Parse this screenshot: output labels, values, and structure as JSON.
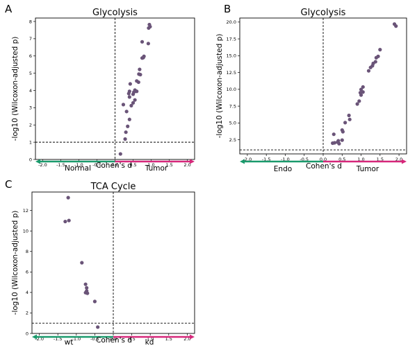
{
  "chart_data": [
    {
      "panel": "A",
      "type": "scatter",
      "title": "Glycolysis",
      "xlabel": "Cohen's d",
      "ylabel": "-log10 (Wilcoxon-adjusted p)",
      "xlim": [
        -2.2,
        2.2
      ],
      "ylim": [
        0,
        8.2
      ],
      "xticks": [
        "-2.0",
        "-1.5",
        "-1.0",
        "-0.5",
        "0.0",
        "0.5",
        "1.0",
        "1.5",
        "2.0"
      ],
      "yticks": [
        "0",
        "1",
        "2",
        "3",
        "4",
        "5",
        "6",
        "7",
        "8"
      ],
      "threshold_y": 1.0,
      "vline_x": 0.0,
      "group_left": "Normal",
      "group_right": "Tumor",
      "color_left": "#1a9a6c",
      "color_right": "#d6277a",
      "point_color": "#6a5478",
      "points": [
        {
          "x": 0.95,
          "y": 7.82
        },
        {
          "x": 0.97,
          "y": 7.7
        },
        {
          "x": 0.93,
          "y": 7.62
        },
        {
          "x": 0.75,
          "y": 6.82
        },
        {
          "x": 0.92,
          "y": 6.72
        },
        {
          "x": 0.8,
          "y": 5.98
        },
        {
          "x": 0.78,
          "y": 5.9
        },
        {
          "x": 0.75,
          "y": 5.88
        },
        {
          "x": 0.68,
          "y": 5.22
        },
        {
          "x": 0.66,
          "y": 4.95
        },
        {
          "x": 0.7,
          "y": 4.92
        },
        {
          "x": 0.6,
          "y": 4.55
        },
        {
          "x": 0.65,
          "y": 4.48
        },
        {
          "x": 0.42,
          "y": 4.38
        },
        {
          "x": 0.4,
          "y": 3.95
        },
        {
          "x": 0.38,
          "y": 3.82
        },
        {
          "x": 0.55,
          "y": 4.02
        },
        {
          "x": 0.6,
          "y": 3.95
        },
        {
          "x": 0.52,
          "y": 3.9
        },
        {
          "x": 0.5,
          "y": 3.78
        },
        {
          "x": 0.4,
          "y": 3.62
        },
        {
          "x": 0.55,
          "y": 3.45
        },
        {
          "x": 0.5,
          "y": 3.28
        },
        {
          "x": 0.45,
          "y": 3.12
        },
        {
          "x": 0.23,
          "y": 3.18
        },
        {
          "x": 0.32,
          "y": 2.78
        },
        {
          "x": 0.4,
          "y": 2.32
        },
        {
          "x": 0.35,
          "y": 1.92
        },
        {
          "x": 0.3,
          "y": 1.58
        },
        {
          "x": 0.28,
          "y": 1.18
        },
        {
          "x": 0.15,
          "y": 0.32
        }
      ]
    },
    {
      "panel": "B",
      "type": "scatter",
      "title": "Glycolysis",
      "xlabel": "Cohen's d",
      "ylabel": "-log10 (Wilcoxon-adjusted p)",
      "xlim": [
        -2.2,
        2.2
      ],
      "ylim": [
        0.4,
        20.6
      ],
      "xticks": [
        "-2.0",
        "-1.5",
        "-1.0",
        "-0.5",
        "0.0",
        "0.5",
        "1.0",
        "1.5",
        "2.0"
      ],
      "yticks": [
        "2.5",
        "5.0",
        "7.5",
        "10.0",
        "12.5",
        "15.0",
        "17.5",
        "20.0"
      ],
      "threshold_y": 1.0,
      "vline_x": 0.0,
      "group_left": "Endo",
      "group_right": "Tumor",
      "color_left": "#1a9a6c",
      "color_right": "#d6277a",
      "point_color": "#6a5478",
      "points": [
        {
          "x": 1.88,
          "y": 19.7
        },
        {
          "x": 1.92,
          "y": 19.4
        },
        {
          "x": 1.5,
          "y": 15.9
        },
        {
          "x": 1.45,
          "y": 14.9
        },
        {
          "x": 1.4,
          "y": 14.7
        },
        {
          "x": 1.38,
          "y": 14.1
        },
        {
          "x": 1.32,
          "y": 13.85
        },
        {
          "x": 1.3,
          "y": 13.5
        },
        {
          "x": 1.25,
          "y": 13.25
        },
        {
          "x": 1.2,
          "y": 12.75
        },
        {
          "x": 1.05,
          "y": 10.35
        },
        {
          "x": 1.0,
          "y": 9.98
        },
        {
          "x": 1.05,
          "y": 9.6
        },
        {
          "x": 0.98,
          "y": 9.5
        },
        {
          "x": 1.0,
          "y": 9.15
        },
        {
          "x": 0.95,
          "y": 8.25
        },
        {
          "x": 0.9,
          "y": 7.82
        },
        {
          "x": 0.68,
          "y": 6.12
        },
        {
          "x": 0.7,
          "y": 5.52
        },
        {
          "x": 0.58,
          "y": 5.05
        },
        {
          "x": 0.5,
          "y": 3.95
        },
        {
          "x": 0.52,
          "y": 3.7
        },
        {
          "x": 0.28,
          "y": 3.32
        },
        {
          "x": 0.5,
          "y": 2.45
        },
        {
          "x": 0.4,
          "y": 2.35
        },
        {
          "x": 0.38,
          "y": 2.15
        },
        {
          "x": 0.3,
          "y": 2.05
        },
        {
          "x": 0.25,
          "y": 2.0
        },
        {
          "x": 0.42,
          "y": 1.92
        }
      ]
    },
    {
      "panel": "C",
      "type": "scatter",
      "title": "TCA Cycle",
      "xlabel": "Cohen's d",
      "ylabel": "-log10 (Wilcoxon-adjusted p)",
      "xlim": [
        -2.2,
        2.2
      ],
      "ylim": [
        0,
        13.8
      ],
      "xticks": [
        "-2.0",
        "-1.5",
        "-1.0",
        "-0.5",
        "0.0",
        "0.5",
        "1.0",
        "1.5",
        "2.0"
      ],
      "yticks": [
        "0",
        "2",
        "4",
        "6",
        "8",
        "10",
        "12"
      ],
      "threshold_y": 1.0,
      "vline_x": 0.0,
      "group_left": "wt",
      "group_right": "kd",
      "color_left": "#1a9a6c",
      "color_right": "#d6277a",
      "point_color": "#6a5478",
      "points": [
        {
          "x": -1.22,
          "y": 13.25
        },
        {
          "x": -1.3,
          "y": 10.92
        },
        {
          "x": -1.2,
          "y": 11.02
        },
        {
          "x": -0.85,
          "y": 6.9
        },
        {
          "x": -0.75,
          "y": 4.8
        },
        {
          "x": -0.72,
          "y": 4.45
        },
        {
          "x": -0.72,
          "y": 4.15
        },
        {
          "x": -0.75,
          "y": 3.98
        },
        {
          "x": -0.7,
          "y": 3.92
        },
        {
          "x": -0.5,
          "y": 3.12
        },
        {
          "x": -0.42,
          "y": 0.62
        }
      ]
    }
  ]
}
